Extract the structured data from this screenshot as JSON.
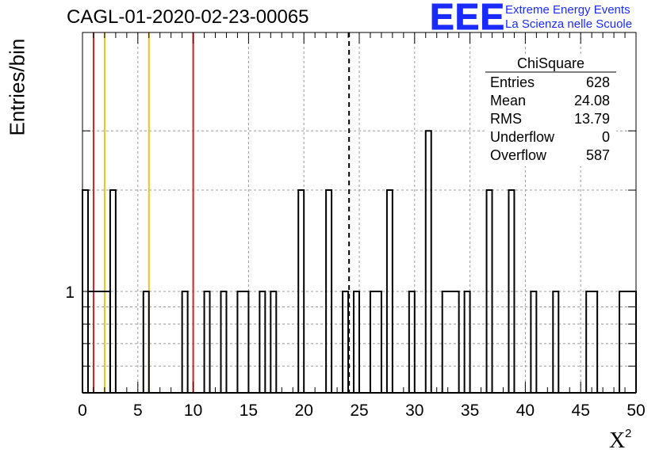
{
  "header": {
    "title": "CAGL-01-2020-02-23-00065"
  },
  "logo": {
    "mark": "EEE",
    "line1": "Extreme Energy Events",
    "line2": "La Scienza nelle Scuole",
    "color": "#1a2bff"
  },
  "chart_data": {
    "type": "histogram",
    "title": "CAGL-01-2020-02-23-00065",
    "xlabel": "X²",
    "ylabel": "Entries/bin",
    "xlim": [
      0,
      50
    ],
    "x_ticks": [
      "0",
      "5",
      "10",
      "15",
      "20",
      "25",
      "30",
      "35",
      "40",
      "45",
      "50"
    ],
    "y_scale": "log",
    "y_tick_labels": [
      "1"
    ],
    "grid": true,
    "bin_width": 0.5,
    "bins": [
      {
        "x0": 0.0,
        "x1": 0.5,
        "y": 2
      },
      {
        "x0": 0.5,
        "x1": 2.5,
        "y": 1
      },
      {
        "x0": 2.5,
        "x1": 3.0,
        "y": 2
      },
      {
        "x0": 5.5,
        "x1": 6.0,
        "y": 1
      },
      {
        "x0": 9.0,
        "x1": 9.5,
        "y": 1
      },
      {
        "x0": 11.0,
        "x1": 11.5,
        "y": 1
      },
      {
        "x0": 12.5,
        "x1": 13.0,
        "y": 1
      },
      {
        "x0": 14.0,
        "x1": 15.0,
        "y": 1
      },
      {
        "x0": 16.0,
        "x1": 16.5,
        "y": 1
      },
      {
        "x0": 17.0,
        "x1": 17.5,
        "y": 1
      },
      {
        "x0": 19.5,
        "x1": 20.0,
        "y": 2
      },
      {
        "x0": 22.0,
        "x1": 22.5,
        "y": 2
      },
      {
        "x0": 23.5,
        "x1": 24.0,
        "y": 1
      },
      {
        "x0": 24.5,
        "x1": 25.0,
        "y": 1
      },
      {
        "x0": 26.0,
        "x1": 27.0,
        "y": 1
      },
      {
        "x0": 27.5,
        "x1": 28.0,
        "y": 2
      },
      {
        "x0": 29.5,
        "x1": 30.0,
        "y": 1
      },
      {
        "x0": 31.0,
        "x1": 31.5,
        "y": 3
      },
      {
        "x0": 32.5,
        "x1": 34.0,
        "y": 1
      },
      {
        "x0": 34.5,
        "x1": 35.0,
        "y": 1
      },
      {
        "x0": 36.5,
        "x1": 37.0,
        "y": 2
      },
      {
        "x0": 38.5,
        "x1": 39.0,
        "y": 2
      },
      {
        "x0": 40.5,
        "x1": 41.0,
        "y": 1
      },
      {
        "x0": 42.5,
        "x1": 43.0,
        "y": 1
      },
      {
        "x0": 45.5,
        "x1": 46.5,
        "y": 1
      },
      {
        "x0": 48.5,
        "x1": 50.0,
        "y": 1
      }
    ],
    "reference_lines": [
      {
        "x": 1,
        "color": "#d42020",
        "style": "solid"
      },
      {
        "x": 2,
        "color": "#f0c020",
        "style": "solid"
      },
      {
        "x": 6,
        "color": "#f0c020",
        "style": "solid"
      },
      {
        "x": 10,
        "color": "#d42020",
        "style": "solid"
      },
      {
        "x": 24.08,
        "color": "#000000",
        "style": "dashed"
      }
    ],
    "stats_box": {
      "title": "ChiSquare",
      "rows": [
        {
          "label": "Entries",
          "value": "628"
        },
        {
          "label": "Mean",
          "value": "24.08"
        },
        {
          "label": "RMS",
          "value": "13.79"
        },
        {
          "label": "Underflow",
          "value": "0"
        },
        {
          "label": "Overflow",
          "value": "587"
        }
      ]
    }
  }
}
